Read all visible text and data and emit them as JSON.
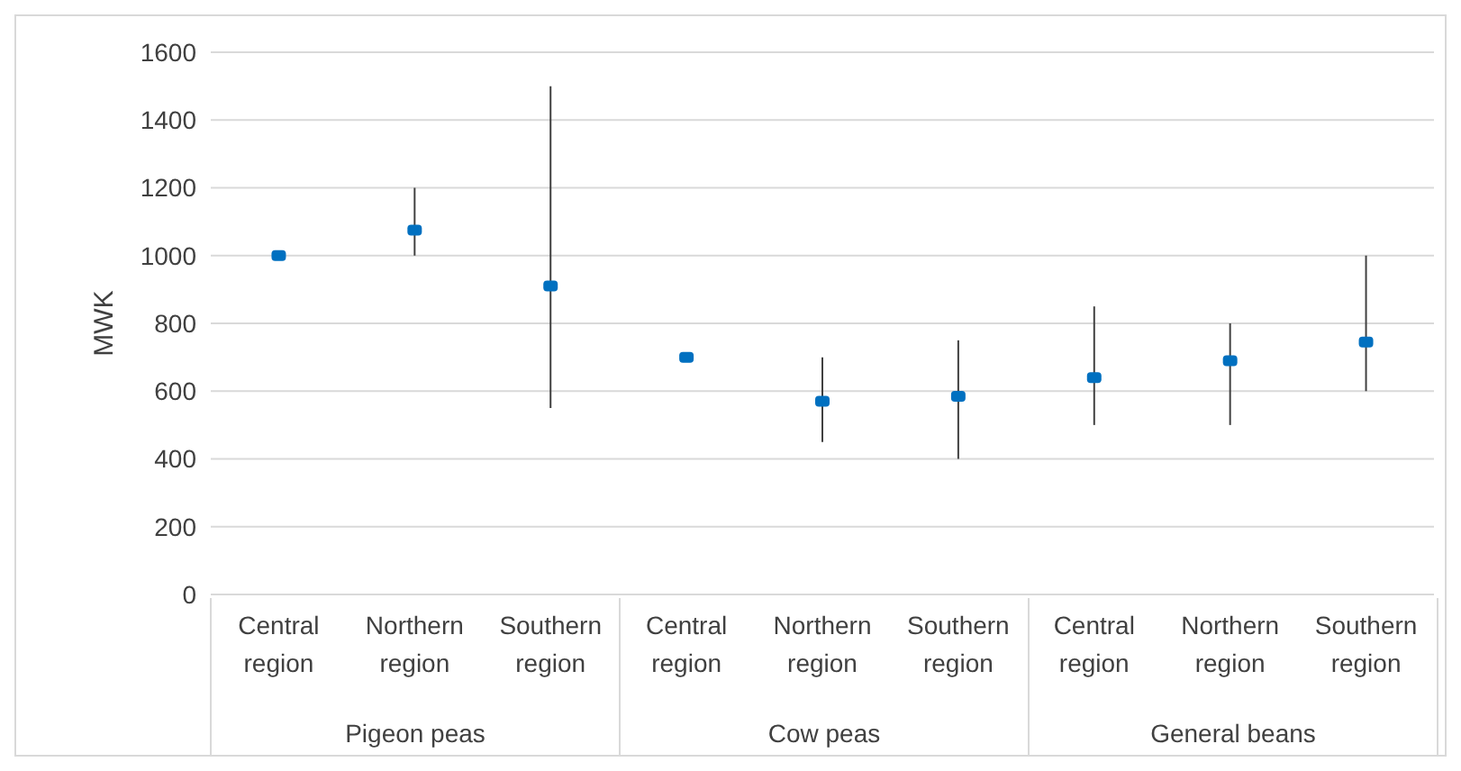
{
  "chart_data": {
    "type": "scatter",
    "ylabel": "MWK",
    "categories": [
      "Central region",
      "Northern region",
      "Southern region",
      "Central region",
      "Northern region",
      "Southern region",
      "Central region",
      "Northern region",
      "Southern region"
    ],
    "series": [
      {
        "color": "#0070c0",
        "values": [
          1000,
          1075,
          910,
          700,
          570,
          585,
          640,
          690,
          745
        ],
        "errors": [
          null,
          [
            1000,
            1200
          ],
          [
            550,
            1500
          ],
          null,
          [
            450,
            700
          ],
          [
            400,
            750
          ],
          [
            500,
            850
          ],
          [
            500,
            800
          ],
          [
            600,
            1000
          ]
        ]
      }
    ],
    "annotations": [
      "Pigeon peas",
      "Cow peas",
      "General beans"
    ],
    "ylim": [
      0,
      1600
    ],
    "yticks": [
      0,
      200,
      400,
      600,
      800,
      1000,
      1200,
      1400,
      1600
    ],
    "grid": "y",
    "marker": "square",
    "legend": false
  }
}
